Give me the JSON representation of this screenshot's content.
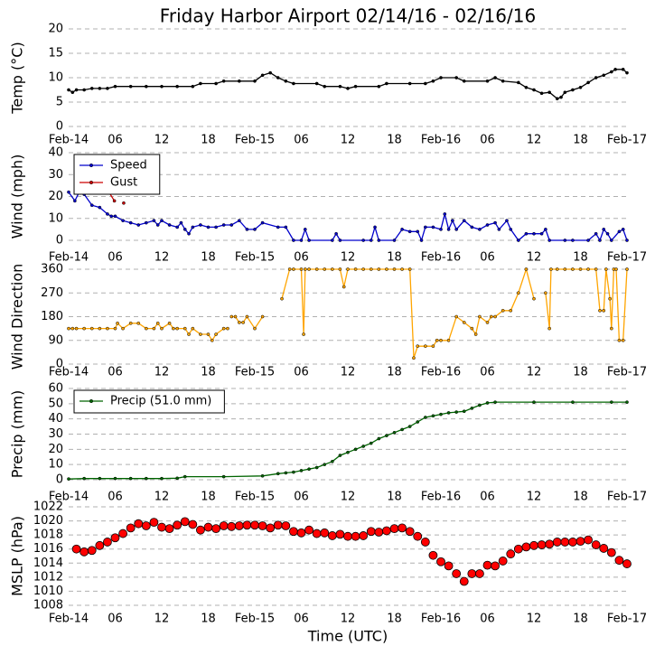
{
  "chart_data": [
    {
      "type": "line",
      "title": "Friday Harbor Airport 02/14/16 - 02/16/16",
      "ylabel": "Temp (°C)",
      "xlim": [
        0,
        72
      ],
      "xticks": [
        {
          "value": 0,
          "label": "Feb-14"
        },
        {
          "value": 6,
          "label": "06"
        },
        {
          "value": 12,
          "label": "12"
        },
        {
          "value": 18,
          "label": "18"
        },
        {
          "value": 24,
          "label": "Feb-15"
        },
        {
          "value": 30,
          "label": "06"
        },
        {
          "value": 36,
          "label": "12"
        },
        {
          "value": 42,
          "label": "18"
        },
        {
          "value": 48,
          "label": "Feb-16"
        },
        {
          "value": 54,
          "label": "06"
        },
        {
          "value": 60,
          "label": "12"
        },
        {
          "value": 66,
          "label": "18"
        },
        {
          "value": 72,
          "label": "Feb-17"
        }
      ],
      "ylim": [
        0,
        20
      ],
      "yticks": [
        0,
        5,
        10,
        15,
        20
      ],
      "grid": true,
      "series": [
        {
          "color": "#000000",
          "x": [
            0,
            0.5,
            1,
            2,
            3,
            4,
            5,
            6,
            8,
            10,
            12,
            14,
            16,
            17,
            19,
            20,
            22,
            24,
            25,
            26,
            27,
            28,
            29,
            32,
            33,
            35,
            36,
            37,
            40,
            41,
            44,
            46,
            47,
            48,
            50,
            51,
            54,
            55,
            56,
            58,
            59,
            60,
            61,
            62,
            63,
            63.5,
            64,
            65,
            66,
            67,
            68,
            69,
            70,
            70.5,
            71.5,
            72
          ],
          "values": [
            7.5,
            7,
            7.5,
            7.5,
            7.8,
            7.8,
            7.8,
            8.2,
            8.2,
            8.2,
            8.2,
            8.2,
            8.2,
            8.8,
            8.8,
            9.3,
            9.3,
            9.3,
            10.5,
            11,
            10,
            9.3,
            8.8,
            8.8,
            8.2,
            8.2,
            7.8,
            8.2,
            8.2,
            8.8,
            8.8,
            8.8,
            9.3,
            10,
            10,
            9.3,
            9.3,
            10,
            9.3,
            9,
            8,
            7.5,
            6.8,
            7,
            5.7,
            6,
            7,
            7.5,
            8,
            9,
            10,
            10.5,
            11.2,
            11.7,
            11.7,
            11
          ]
        }
      ]
    },
    {
      "type": "line",
      "ylabel": "Wind (mph)",
      "xlim": [
        0,
        72
      ],
      "xticks": [
        {
          "value": 0,
          "label": "Feb-14"
        },
        {
          "value": 6,
          "label": "06"
        },
        {
          "value": 12,
          "label": "12"
        },
        {
          "value": 18,
          "label": "18"
        },
        {
          "value": 24,
          "label": "Feb-15"
        },
        {
          "value": 30,
          "label": "06"
        },
        {
          "value": 36,
          "label": "12"
        },
        {
          "value": 42,
          "label": "18"
        },
        {
          "value": 48,
          "label": "Feb-16"
        },
        {
          "value": 54,
          "label": "06"
        },
        {
          "value": 60,
          "label": "12"
        },
        {
          "value": 66,
          "label": "18"
        },
        {
          "value": 72,
          "label": "Feb-17"
        }
      ],
      "ylim": [
        0,
        40
      ],
      "yticks": [
        0,
        10,
        20,
        30,
        40
      ],
      "grid": true,
      "legend": "upper left",
      "series": [
        {
          "name": "Speed",
          "color": "#0000cc",
          "x": [
            0,
            0.8,
            1.5,
            2,
            3,
            4,
            5,
            5.5,
            6,
            7,
            8,
            9,
            10,
            11,
            11.5,
            12,
            13,
            14,
            14.5,
            15,
            15.5,
            16,
            17,
            18,
            19,
            20,
            21,
            22,
            23,
            24,
            25,
            27,
            28,
            29,
            30,
            30.5,
            31,
            34,
            34.5,
            35,
            38,
            39,
            39.5,
            40,
            42,
            43,
            44,
            45,
            45.5,
            46,
            47,
            48,
            48.5,
            49,
            49.5,
            50,
            51,
            52,
            53,
            54,
            55,
            55.5,
            56.5,
            57,
            58,
            59,
            60,
            61,
            61.5,
            62,
            64,
            65,
            67,
            68,
            68.5,
            69,
            69.5,
            70,
            71,
            71.5,
            72
          ],
          "values": [
            22,
            18,
            23,
            21,
            16,
            15,
            12,
            11,
            11,
            9,
            8,
            7,
            8,
            9,
            7,
            9,
            7,
            6,
            8,
            5,
            3,
            6,
            7,
            6,
            6,
            7,
            7,
            9,
            5,
            5,
            8,
            6,
            6,
            0,
            0,
            5,
            0,
            0,
            3,
            0,
            0,
            0,
            6,
            0,
            0,
            5,
            4,
            4,
            0,
            6,
            6,
            5,
            12,
            5,
            9,
            5,
            9,
            6,
            5,
            7,
            8,
            5,
            9,
            5,
            0,
            3,
            3,
            3,
            5,
            0,
            0,
            0,
            0,
            3,
            0,
            5,
            3,
            0,
            4,
            5,
            0
          ]
        },
        {
          "name": "Gust",
          "color": "#cc0000",
          "x": [
            5.2,
            5.9,
            6.5,
            7.1
          ],
          "values": [
            22,
            18,
            null,
            17
          ]
        }
      ]
    },
    {
      "type": "line",
      "ylabel": "Wind Direction",
      "xlim": [
        0,
        72
      ],
      "xticks": [
        {
          "value": 0,
          "label": "Feb-14"
        },
        {
          "value": 6,
          "label": "06"
        },
        {
          "value": 12,
          "label": "12"
        },
        {
          "value": 18,
          "label": "18"
        },
        {
          "value": 24,
          "label": "Feb-15"
        },
        {
          "value": 30,
          "label": "06"
        },
        {
          "value": 36,
          "label": "12"
        },
        {
          "value": 42,
          "label": "18"
        },
        {
          "value": 48,
          "label": "Feb-16"
        },
        {
          "value": 54,
          "label": "06"
        },
        {
          "value": 60,
          "label": "12"
        },
        {
          "value": 66,
          "label": "18"
        },
        {
          "value": 72,
          "label": "Feb-17"
        }
      ],
      "ylim": [
        0,
        360
      ],
      "yticks": [
        0,
        90,
        180,
        270,
        360
      ],
      "grid": true,
      "series": [
        {
          "color": "#ffa500",
          "x": [
            0,
            0.5,
            1,
            2,
            3,
            4,
            5,
            6,
            6.3,
            7,
            8,
            9,
            10,
            11,
            11.5,
            12,
            13,
            13.5,
            14,
            15,
            15.5,
            16,
            17,
            18,
            18.5,
            19,
            20,
            20.5,
            20.8,
            21,
            21.5,
            22,
            22.5,
            23,
            24,
            25,
            26.8,
            27.5,
            28.5,
            29,
            30,
            30.3,
            30.5,
            31,
            32,
            33,
            34,
            35,
            35.5,
            36,
            37,
            38,
            39,
            40,
            41,
            42,
            43,
            44,
            44.5,
            45,
            46,
            47,
            47.5,
            48,
            49,
            50,
            51,
            52,
            52.5,
            53,
            54,
            54.5,
            55,
            56,
            57,
            58,
            59,
            60,
            60.8,
            61.5,
            62,
            62.2,
            63,
            64,
            65,
            66,
            67,
            68,
            68.5,
            69,
            69.3,
            69.8,
            70,
            70.3,
            70.6,
            71,
            71.5,
            72
          ],
          "values": [
            135,
            135,
            135,
            135,
            135,
            135,
            135,
            135,
            155,
            135,
            155,
            155,
            135,
            135,
            155,
            135,
            155,
            135,
            135,
            135,
            113,
            135,
            113,
            113,
            90,
            113,
            135,
            135,
            null,
            180,
            180,
            158,
            158,
            180,
            135,
            180,
            null,
            248,
            360,
            360,
            360,
            113,
            360,
            360,
            360,
            360,
            360,
            360,
            293,
            360,
            360,
            360,
            360,
            360,
            360,
            360,
            360,
            360,
            23,
            68,
            68,
            68,
            90,
            90,
            90,
            180,
            158,
            135,
            113,
            180,
            158,
            180,
            180,
            203,
            203,
            270,
            360,
            248,
            null,
            270,
            135,
            360,
            360,
            360,
            360,
            360,
            360,
            360,
            203,
            203,
            360,
            248,
            135,
            360,
            360,
            90,
            90,
            360
          ]
        }
      ]
    },
    {
      "type": "line",
      "ylabel": "Precip (mm)",
      "xlim": [
        0,
        72
      ],
      "xticks": [
        {
          "value": 0,
          "label": "Feb-14"
        },
        {
          "value": 6,
          "label": "06"
        },
        {
          "value": 12,
          "label": "12"
        },
        {
          "value": 18,
          "label": "18"
        },
        {
          "value": 24,
          "label": "Feb-15"
        },
        {
          "value": 30,
          "label": "06"
        },
        {
          "value": 36,
          "label": "12"
        },
        {
          "value": 42,
          "label": "18"
        },
        {
          "value": 48,
          "label": "Feb-16"
        },
        {
          "value": 54,
          "label": "06"
        },
        {
          "value": 60,
          "label": "12"
        },
        {
          "value": 66,
          "label": "18"
        },
        {
          "value": 72,
          "label": "Feb-17"
        }
      ],
      "ylim": [
        0,
        60
      ],
      "yticks": [
        0,
        10,
        20,
        30,
        40,
        50,
        60
      ],
      "grid": true,
      "legend": "upper left",
      "series": [
        {
          "name": "Precip (51.0 mm)",
          "color": "#006400",
          "x": [
            0,
            2,
            4,
            6,
            8,
            10,
            12,
            14,
            15,
            20,
            25,
            27,
            28,
            29,
            30,
            31,
            32,
            33,
            34,
            35,
            36,
            37,
            38,
            39,
            40,
            41,
            42,
            43,
            44,
            45,
            46,
            47,
            48,
            49,
            50,
            51,
            52,
            53,
            54,
            55,
            60,
            65,
            70,
            72
          ],
          "values": [
            0.5,
            0.8,
            0.8,
            0.8,
            0.8,
            0.8,
            0.8,
            1,
            2,
            2,
            2.5,
            4,
            4.5,
            5,
            6,
            7,
            8,
            10,
            12,
            16,
            18,
            20,
            22,
            24,
            27,
            29,
            31,
            33,
            35,
            38,
            41,
            42,
            43,
            44,
            44.5,
            45,
            47,
            49,
            50.5,
            51,
            51,
            51,
            51,
            51
          ]
        }
      ]
    },
    {
      "type": "scatter",
      "ylabel": "MSLP (hPa)",
      "xlabel": "Time (UTC)",
      "xlim": [
        0,
        72
      ],
      "xticks": [
        {
          "value": 0,
          "label": "Feb-14"
        },
        {
          "value": 6,
          "label": "06"
        },
        {
          "value": 12,
          "label": "12"
        },
        {
          "value": 18,
          "label": "18"
        },
        {
          "value": 24,
          "label": "Feb-15"
        },
        {
          "value": 30,
          "label": "06"
        },
        {
          "value": 36,
          "label": "12"
        },
        {
          "value": 42,
          "label": "18"
        },
        {
          "value": 48,
          "label": "Feb-16"
        },
        {
          "value": 54,
          "label": "06"
        },
        {
          "value": 60,
          "label": "12"
        },
        {
          "value": 66,
          "label": "18"
        },
        {
          "value": 72,
          "label": "Feb-17"
        }
      ],
      "ylim": [
        1008,
        1022
      ],
      "yticks": [
        1008,
        1010,
        1012,
        1014,
        1016,
        1018,
        1020,
        1022
      ],
      "grid": true,
      "series": [
        {
          "color": "#ff0000",
          "x": [
            1,
            2,
            3,
            4,
            5,
            6,
            7,
            8,
            9,
            10,
            11,
            12,
            13,
            14,
            15,
            16,
            17,
            18,
            19,
            20,
            21,
            22,
            23,
            24,
            25,
            26,
            27,
            28,
            29,
            30,
            31,
            32,
            33,
            34,
            35,
            36,
            37,
            38,
            39,
            40,
            41,
            42,
            43,
            44,
            45,
            46,
            47,
            48,
            49,
            50,
            51,
            52,
            53,
            54,
            55,
            56,
            57,
            58,
            59,
            60,
            61,
            62,
            63,
            64,
            65,
            66,
            67,
            68,
            69,
            70,
            71,
            72
          ],
          "values": [
            1016,
            1015.6,
            1015.8,
            1016.5,
            1017,
            1017.6,
            1018.2,
            1019,
            1019.6,
            1019.3,
            1019.8,
            1019.1,
            1018.9,
            1019.4,
            1019.9,
            1019.5,
            1018.7,
            1019.1,
            1018.9,
            1019.3,
            1019.2,
            1019.3,
            1019.4,
            1019.4,
            1019.3,
            1019,
            1019.4,
            1019.3,
            1018.5,
            1018.3,
            1018.7,
            1018.2,
            1018.3,
            1017.9,
            1018.1,
            1017.8,
            1017.8,
            1017.9,
            1018.5,
            1018.4,
            1018.6,
            1018.9,
            1019,
            1018.5,
            1017.8,
            1017,
            1015.1,
            1014.2,
            1013.6,
            1012.5,
            1011.4,
            1012.5,
            1012.5,
            1013.7,
            1013.6,
            1014.3,
            1015.3,
            1016,
            1016.3,
            1016.5,
            1016.6,
            1016.7,
            1017,
            1017,
            1017,
            1017.1,
            1017.3,
            1016.6,
            1016.1,
            1015.5,
            1014.4,
            1013.9
          ]
        }
      ]
    }
  ]
}
